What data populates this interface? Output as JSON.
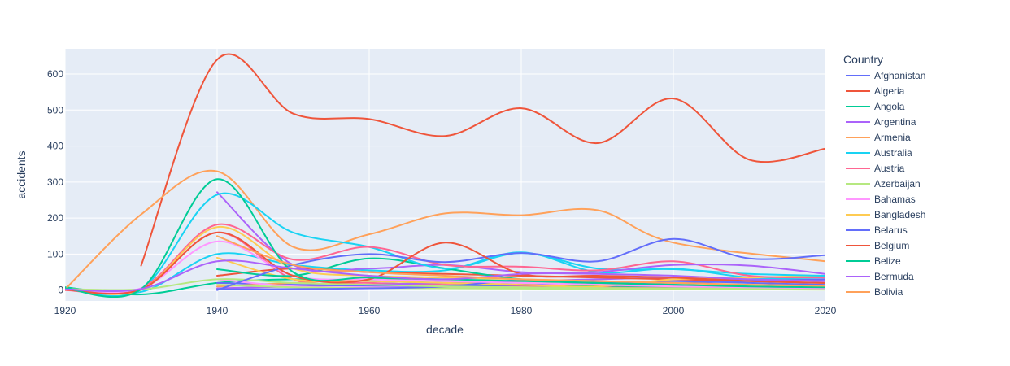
{
  "chart_data": {
    "type": "line",
    "title": "",
    "xlabel": "decade",
    "ylabel": "accidents",
    "xlim": [
      1920,
      2020
    ],
    "ylim": [
      -30,
      670
    ],
    "x_ticks": [
      1920,
      1940,
      1960,
      1980,
      2000,
      2020
    ],
    "y_ticks": [
      0,
      100,
      200,
      300,
      400,
      500,
      600
    ],
    "legend_title": "Country",
    "legend_position": "right",
    "grid": true,
    "plot_bg": "#E5ECF6",
    "series": [
      {
        "name": "Afghanistan",
        "color": "#636EFA",
        "x": [
          1940,
          1950,
          1960,
          1970,
          1980,
          1990,
          2000,
          2010,
          2020
        ],
        "y": [
          2,
          3,
          5,
          10,
          28,
          22,
          20,
          25,
          30
        ]
      },
      {
        "name": "Algeria",
        "color": "#EF553B",
        "x": [
          1930,
          1940,
          1950,
          1960,
          1970,
          1980,
          1990,
          2000,
          2010,
          2020
        ],
        "y": [
          68,
          640,
          490,
          475,
          428,
          505,
          408,
          532,
          362,
          393
        ]
      },
      {
        "name": "Angola",
        "color": "#00CC96",
        "x": [
          1940,
          1950,
          1960,
          1970,
          1980,
          1990,
          2000,
          2010,
          2020
        ],
        "y": [
          58,
          40,
          88,
          60,
          30,
          20,
          15,
          10,
          8
        ]
      },
      {
        "name": "Argentina",
        "color": "#AB63FA",
        "x": [
          1940,
          1950,
          1960,
          1970,
          1980,
          1990,
          2000,
          2010,
          2020
        ],
        "y": [
          272,
          70,
          60,
          70,
          50,
          45,
          40,
          30,
          25
        ]
      },
      {
        "name": "Armenia",
        "color": "#FFA15A",
        "x": [
          1920,
          1930,
          1940,
          1950,
          1960,
          1970,
          1980,
          1990,
          2000,
          2020
        ],
        "y": [
          2,
          210,
          330,
          120,
          155,
          213,
          208,
          222,
          132,
          80
        ]
      },
      {
        "name": "Australia",
        "color": "#19D3F3",
        "x": [
          1920,
          1930,
          1940,
          1950,
          1960,
          1970,
          1980,
          1990,
          2000,
          2010,
          2020
        ],
        "y": [
          5,
          2,
          265,
          160,
          120,
          60,
          103,
          60,
          58,
          45,
          40
        ]
      },
      {
        "name": "Austria",
        "color": "#FF6692",
        "x": [
          1920,
          1930,
          1940,
          1950,
          1960,
          1970,
          1980,
          1990,
          2000,
          2010,
          2020
        ],
        "y": [
          2,
          5,
          182,
          85,
          120,
          70,
          65,
          55,
          80,
          40,
          35
        ]
      },
      {
        "name": "Azerbaijan",
        "color": "#B6E880",
        "x": [
          1920,
          1930,
          1940,
          1950,
          1960,
          1970,
          1980,
          1990,
          2000,
          2010,
          2020
        ],
        "y": [
          3,
          2,
          30,
          20,
          15,
          10,
          8,
          6,
          5,
          4,
          3
        ]
      },
      {
        "name": "Bahamas",
        "color": "#FF97FF",
        "x": [
          1920,
          1930,
          1940,
          1950,
          1960,
          1970,
          1980,
          1990,
          2000,
          2010,
          2020
        ],
        "y": [
          2,
          5,
          135,
          40,
          30,
          25,
          20,
          15,
          10,
          8,
          5
        ]
      },
      {
        "name": "Bangladesh",
        "color": "#FECB52",
        "x": [
          1920,
          1930,
          1940,
          1950,
          1960,
          1970,
          1980,
          1990,
          2000,
          2010,
          2020
        ],
        "y": [
          3,
          1,
          175,
          60,
          40,
          35,
          30,
          25,
          20,
          15,
          10
        ]
      },
      {
        "name": "Belarus",
        "color": "#636EFA",
        "x": [
          1940,
          1950,
          1960,
          1970,
          1980,
          1990,
          2000,
          2010,
          2020
        ],
        "y": [
          0,
          70,
          100,
          78,
          103,
          80,
          142,
          88,
          97
        ]
      },
      {
        "name": "Belgium",
        "color": "#EF553B",
        "x": [
          1920,
          1930,
          1940,
          1950,
          1960,
          1970,
          1980,
          1990,
          2000,
          2010,
          2020
        ],
        "y": [
          1,
          2,
          160,
          40,
          30,
          132,
          45,
          40,
          35,
          25,
          20
        ]
      },
      {
        "name": "Belize",
        "color": "#00CC96",
        "x": [
          1920,
          1930,
          1940,
          1950,
          1960,
          1970,
          1980,
          1990,
          2000,
          2010,
          2020
        ],
        "y": [
          5,
          3,
          308,
          50,
          35,
          30,
          25,
          20,
          15,
          10,
          8
        ]
      },
      {
        "name": "Bermuda",
        "color": "#AB63FA",
        "x": [
          1920,
          1930,
          1940,
          1950,
          1960,
          1970,
          1980,
          1990,
          2000,
          2010,
          2020
        ],
        "y": [
          2,
          3,
          80,
          60,
          40,
          30,
          45,
          50,
          70,
          68,
          45
        ]
      },
      {
        "name": "Bolivia",
        "color": "#FFA15A",
        "x": [
          1940,
          1950,
          1960,
          1970,
          1980,
          1990,
          2000,
          2010,
          2020
        ],
        "y": [
          150,
          70,
          50,
          40,
          30,
          25,
          20,
          15,
          12
        ]
      },
      {
        "name": "",
        "color": "#19D3F3",
        "x": [
          1920,
          1930,
          1940,
          1950,
          1960,
          1970,
          1980,
          1990,
          2000,
          2010,
          2020
        ],
        "y": [
          8,
          -5,
          100,
          70,
          55,
          55,
          105,
          50,
          60,
          35,
          30
        ]
      },
      {
        "name": "",
        "color": "#FF6692",
        "x": [
          1920,
          1930,
          1940,
          1950,
          1960,
          1970,
          1980,
          1990,
          2000,
          2010,
          2020
        ],
        "y": [
          0,
          1,
          160,
          30,
          20,
          15,
          12,
          10,
          8,
          6,
          5
        ]
      },
      {
        "name": "",
        "color": "#00CC96",
        "x": [
          1920,
          1930,
          1940,
          1950,
          1960,
          1970,
          1980,
          1990,
          2000,
          2010,
          2020
        ],
        "y": [
          8,
          -12,
          20,
          30,
          25,
          20,
          15,
          12,
          10,
          8,
          6
        ]
      },
      {
        "name": "",
        "color": "#AB63FA",
        "x": [
          1940,
          1950,
          1960,
          1970,
          1980,
          1990,
          2000,
          2010,
          2020
        ],
        "y": [
          5,
          10,
          15,
          20,
          25,
          30,
          35,
          30,
          25
        ]
      },
      {
        "name": "",
        "color": "#EF553B",
        "x": [
          1940,
          1950,
          1960,
          1970,
          1980,
          1990,
          2000,
          2010,
          2020
        ],
        "y": [
          40,
          60,
          50,
          45,
          40,
          35,
          30,
          25,
          20
        ]
      },
      {
        "name": "",
        "color": "#636EFA",
        "x": [
          1940,
          1950,
          1960,
          1970,
          1980,
          1990,
          2000,
          2010,
          2020
        ],
        "y": [
          20,
          15,
          12,
          10,
          15,
          20,
          25,
          20,
          15
        ]
      },
      {
        "name": "",
        "color": "#FFA15A",
        "x": [
          1940,
          1950,
          1960,
          1970,
          1980,
          1990,
          2000,
          2010,
          2020
        ],
        "y": [
          10,
          20,
          30,
          25,
          20,
          15,
          12,
          10,
          8
        ]
      },
      {
        "name": "",
        "color": "#FECB52",
        "x": [
          1940,
          1950,
          1960,
          1970,
          1980,
          1990,
          2000,
          2010,
          2020
        ],
        "y": [
          90,
          30,
          25,
          20,
          15,
          10,
          30,
          35,
          40
        ]
      },
      {
        "name": "",
        "color": "#FF97FF",
        "x": [
          1940,
          1950,
          1960,
          1970,
          1980,
          1990,
          2000,
          2010,
          2020
        ],
        "y": [
          30,
          10,
          8,
          6,
          5,
          4,
          3,
          2,
          2
        ]
      },
      {
        "name": "",
        "color": "#B6E880",
        "x": [
          1940,
          1950,
          1960,
          1970,
          1980,
          1990,
          2000,
          2010,
          2020
        ],
        "y": [
          15,
          8,
          6,
          5,
          4,
          3,
          2,
          2,
          1
        ]
      }
    ]
  }
}
